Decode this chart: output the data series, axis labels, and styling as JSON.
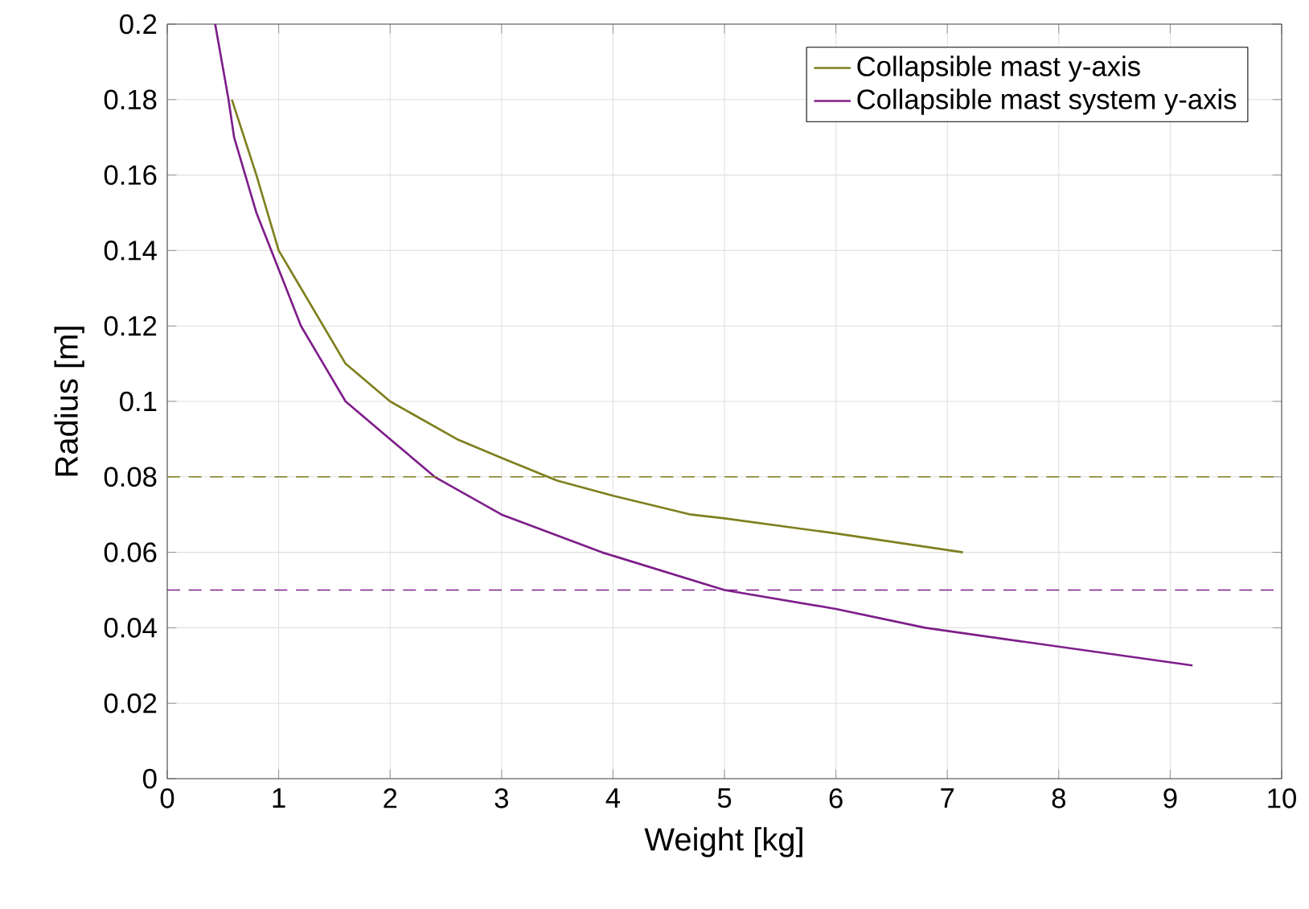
{
  "chart_data": {
    "type": "line",
    "xlabel": "Weight [kg]",
    "ylabel": "Radius [m]",
    "xlim": [
      0,
      10
    ],
    "ylim": [
      0,
      0.2
    ],
    "xticks": [
      0,
      1,
      2,
      3,
      4,
      5,
      6,
      7,
      8,
      9,
      10
    ],
    "yticks": [
      0,
      0.02,
      0.04,
      0.06,
      0.08,
      0.1,
      0.12,
      0.14,
      0.16,
      0.18,
      0.2
    ],
    "grid": true,
    "legend": "top right",
    "marker": "none",
    "line_style": "solid",
    "series": [
      {
        "name": "Collapsible mast y-axis",
        "color": "#7f7f1f",
        "x": [
          0.58,
          0.8,
          1.0,
          1.2,
          1.4,
          1.6,
          2.0,
          2.6,
          3.0,
          3.5,
          4.0,
          4.7,
          5.0,
          6.0,
          7.14
        ],
        "values": [
          0.18,
          0.16,
          0.14,
          0.13,
          0.12,
          0.11,
          0.1,
          0.09,
          0.085,
          0.079,
          0.075,
          0.07,
          0.069,
          0.065,
          0.06
        ]
      },
      {
        "name": "Collapsible mast system y-axis",
        "color": "#7e1e8a",
        "x": [
          0.43,
          0.55,
          0.6,
          0.8,
          1.0,
          1.2,
          1.4,
          1.6,
          2.0,
          2.4,
          3.0,
          3.9,
          5.0,
          6.0,
          6.8,
          8.0,
          9.2
        ],
        "values": [
          0.2,
          0.18,
          0.17,
          0.15,
          0.135,
          0.12,
          0.11,
          0.1,
          0.09,
          0.08,
          0.07,
          0.06,
          0.05,
          0.045,
          0.04,
          0.035,
          0.03
        ]
      }
    ],
    "ref_lines": [
      {
        "axis": "y",
        "value": 0.08,
        "color": "#7f7f1f",
        "line_style": "dashed"
      },
      {
        "axis": "y",
        "value": 0.05,
        "color": "#7e1e8a",
        "line_style": "dashed"
      }
    ]
  }
}
